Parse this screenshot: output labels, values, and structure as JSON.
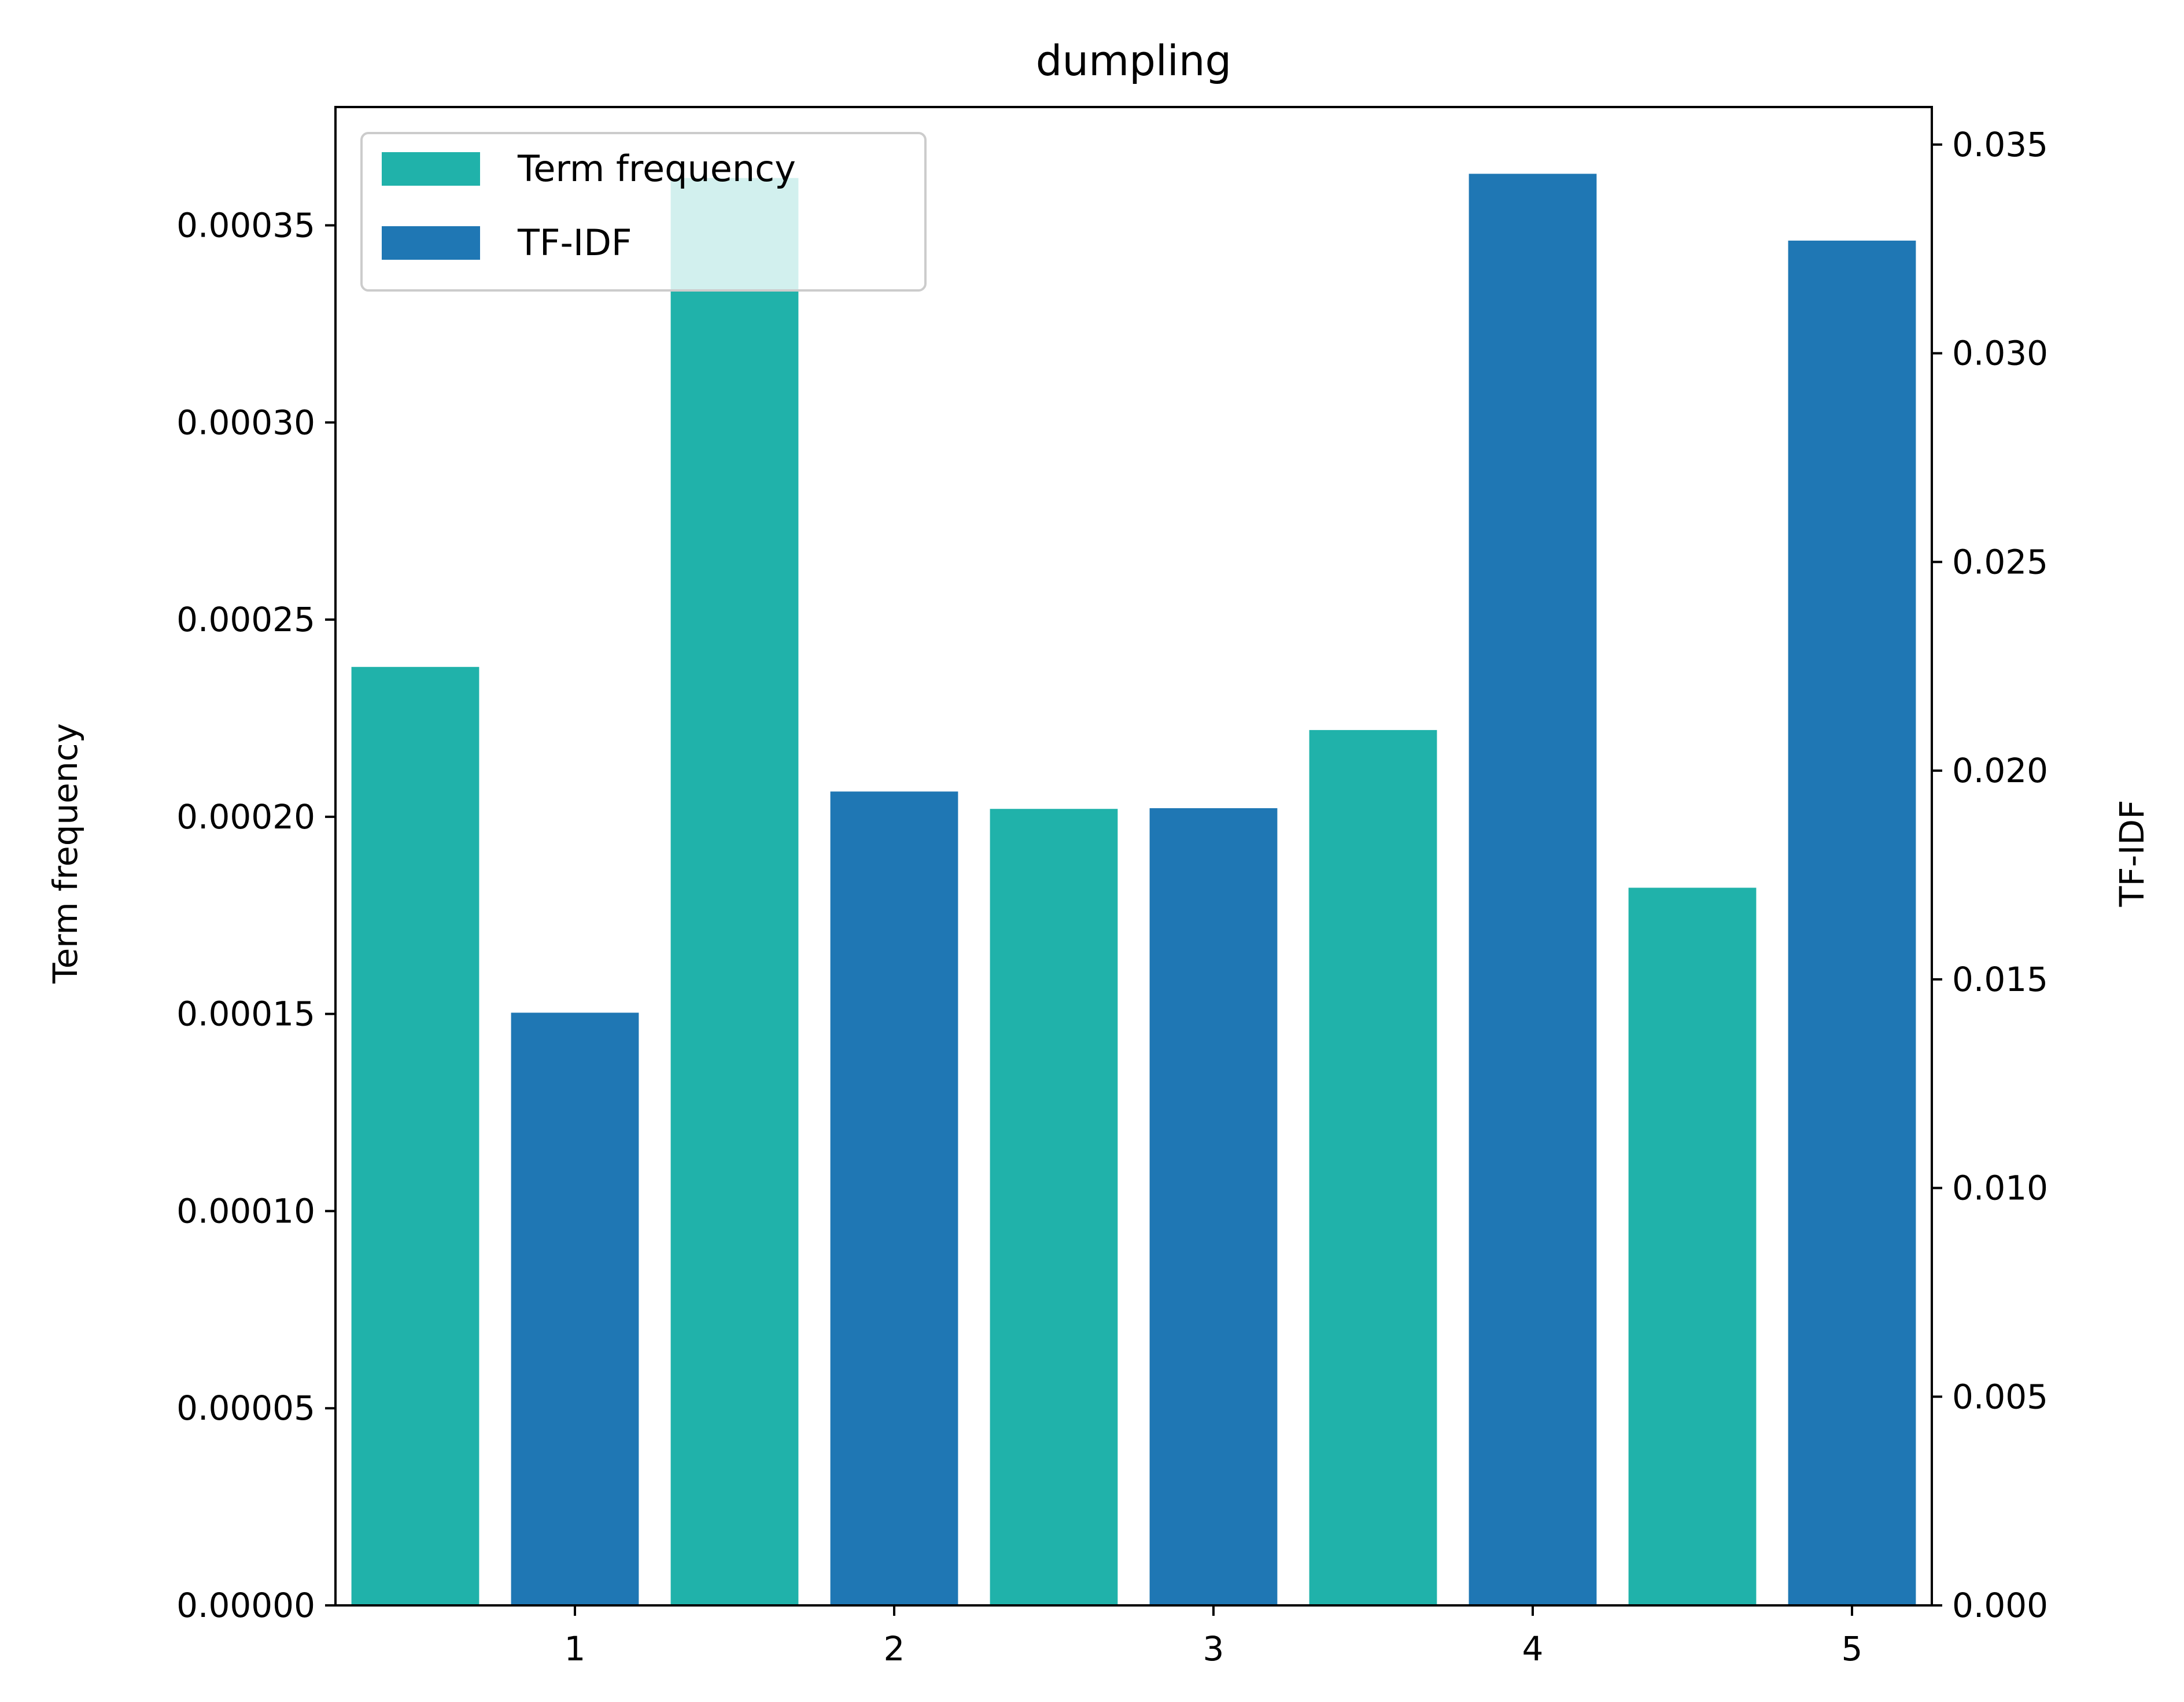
{
  "chart_data": {
    "type": "bar",
    "title": "dumpling",
    "categories": [
      "1",
      "2",
      "3",
      "4",
      "5"
    ],
    "xticks": [
      "1",
      "2",
      "3",
      "4",
      "5"
    ],
    "ylabel_left": "Term frequency",
    "ylabel_right": "TF-IDF",
    "ylim_left": [
      0,
      0.00038
    ],
    "ylim_right": [
      0,
      0.0359
    ],
    "yticks_left": [
      "0.00000",
      "0.00005",
      "0.00010",
      "0.00015",
      "0.00020",
      "0.00025",
      "0.00030",
      "0.00035"
    ],
    "yticks_right": [
      "0.000",
      "0.005",
      "0.010",
      "0.015",
      "0.020",
      "0.025",
      "0.030",
      "0.035"
    ],
    "grid": false,
    "legend_position": "top-left",
    "series": [
      {
        "name": "Term frequency",
        "axis": "left",
        "color": "#20b2aa",
        "values": [
          0.000238,
          0.000362,
          0.000202,
          0.000222,
          0.000182
        ]
      },
      {
        "name": "TF-IDF",
        "axis": "right",
        "color": "#1f77b4",
        "values": [
          0.0142,
          0.0195,
          0.0191,
          0.0343,
          0.0327
        ]
      }
    ]
  }
}
